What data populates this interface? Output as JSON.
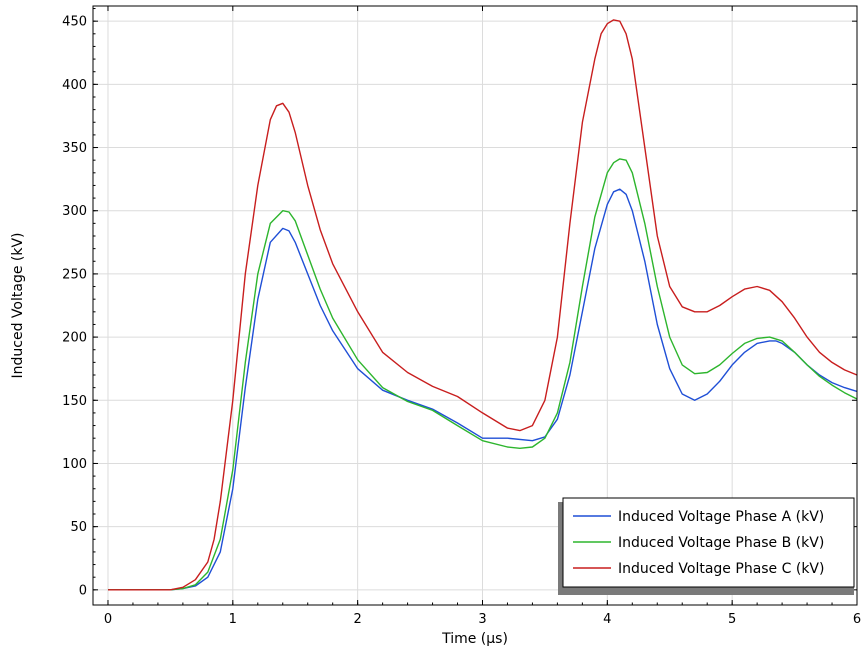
{
  "chart_data": {
    "type": "line",
    "xlabel": "Time (µs)",
    "ylabel": "Induced Voltage (kV)",
    "xlim": [
      -0.12,
      6.0
    ],
    "ylim": [
      -12,
      462
    ],
    "xticks": [
      0,
      1,
      2,
      3,
      4,
      5,
      6
    ],
    "yticks": [
      0,
      50,
      100,
      150,
      200,
      250,
      300,
      350,
      400,
      450
    ],
    "grid": true,
    "legend_position": "bottom-right",
    "series": [
      {
        "name": "Induced Voltage Phase A (kV)",
        "color": "#1f4fd6",
        "x": [
          0,
          0.5,
          0.6,
          0.7,
          0.8,
          0.9,
          1.0,
          1.1,
          1.2,
          1.3,
          1.4,
          1.45,
          1.5,
          1.6,
          1.7,
          1.8,
          2.0,
          2.2,
          2.4,
          2.6,
          2.8,
          3.0,
          3.2,
          3.4,
          3.5,
          3.6,
          3.7,
          3.8,
          3.9,
          4.0,
          4.05,
          4.1,
          4.15,
          4.2,
          4.3,
          4.4,
          4.5,
          4.6,
          4.7,
          4.8,
          4.9,
          5.0,
          5.1,
          5.2,
          5.3,
          5.35,
          5.4,
          5.5,
          5.6,
          5.7,
          5.8,
          5.9,
          6.0
        ],
        "y": [
          0,
          0,
          1,
          3,
          10,
          30,
          80,
          160,
          230,
          275,
          286,
          284,
          275,
          250,
          225,
          205,
          175,
          158,
          150,
          143,
          132,
          120,
          120,
          118,
          121,
          135,
          170,
          220,
          270,
          305,
          315,
          317,
          313,
          300,
          260,
          210,
          175,
          155,
          150,
          155,
          165,
          178,
          188,
          195,
          197,
          197,
          195,
          188,
          178,
          170,
          164,
          160,
          157
        ]
      },
      {
        "name": "Induced Voltage Phase B (kV)",
        "color": "#2db52d",
        "x": [
          0,
          0.5,
          0.6,
          0.7,
          0.8,
          0.9,
          1.0,
          1.1,
          1.2,
          1.3,
          1.4,
          1.45,
          1.5,
          1.6,
          1.7,
          1.8,
          2.0,
          2.2,
          2.4,
          2.6,
          2.8,
          3.0,
          3.2,
          3.3,
          3.4,
          3.5,
          3.6,
          3.7,
          3.8,
          3.9,
          4.0,
          4.05,
          4.1,
          4.15,
          4.2,
          4.3,
          4.4,
          4.5,
          4.6,
          4.7,
          4.8,
          4.9,
          5.0,
          5.1,
          5.2,
          5.3,
          5.4,
          5.5,
          5.6,
          5.7,
          5.8,
          5.9,
          6.0
        ],
        "y": [
          0,
          0,
          1,
          4,
          14,
          40,
          95,
          180,
          250,
          290,
          300,
          299,
          292,
          265,
          238,
          215,
          182,
          160,
          149,
          142,
          130,
          118,
          113,
          112,
          113,
          120,
          140,
          180,
          240,
          295,
          330,
          338,
          341,
          340,
          330,
          290,
          240,
          200,
          178,
          171,
          172,
          178,
          187,
          195,
          199,
          200,
          197,
          188,
          178,
          169,
          162,
          156,
          151
        ]
      },
      {
        "name": "Induced Voltage Phase C (kV)",
        "color": "#c81e1e",
        "x": [
          0,
          0.5,
          0.6,
          0.7,
          0.8,
          0.85,
          0.9,
          1.0,
          1.1,
          1.2,
          1.3,
          1.35,
          1.4,
          1.45,
          1.5,
          1.6,
          1.7,
          1.8,
          2.0,
          2.2,
          2.4,
          2.6,
          2.8,
          3.0,
          3.2,
          3.3,
          3.4,
          3.5,
          3.6,
          3.7,
          3.8,
          3.9,
          3.95,
          4.0,
          4.05,
          4.1,
          4.15,
          4.2,
          4.3,
          4.4,
          4.5,
          4.6,
          4.7,
          4.8,
          4.9,
          5.0,
          5.1,
          5.2,
          5.3,
          5.4,
          5.5,
          5.6,
          5.7,
          5.8,
          5.9,
          6.0
        ],
        "y": [
          0,
          0,
          2,
          8,
          22,
          40,
          70,
          150,
          250,
          320,
          372,
          383,
          385,
          378,
          362,
          320,
          285,
          258,
          220,
          188,
          172,
          161,
          153,
          140,
          128,
          126,
          130,
          150,
          200,
          290,
          370,
          420,
          440,
          448,
          451,
          450,
          440,
          420,
          350,
          280,
          240,
          224,
          220,
          220,
          225,
          232,
          238,
          240,
          237,
          228,
          215,
          200,
          188,
          180,
          174,
          170
        ]
      }
    ]
  }
}
